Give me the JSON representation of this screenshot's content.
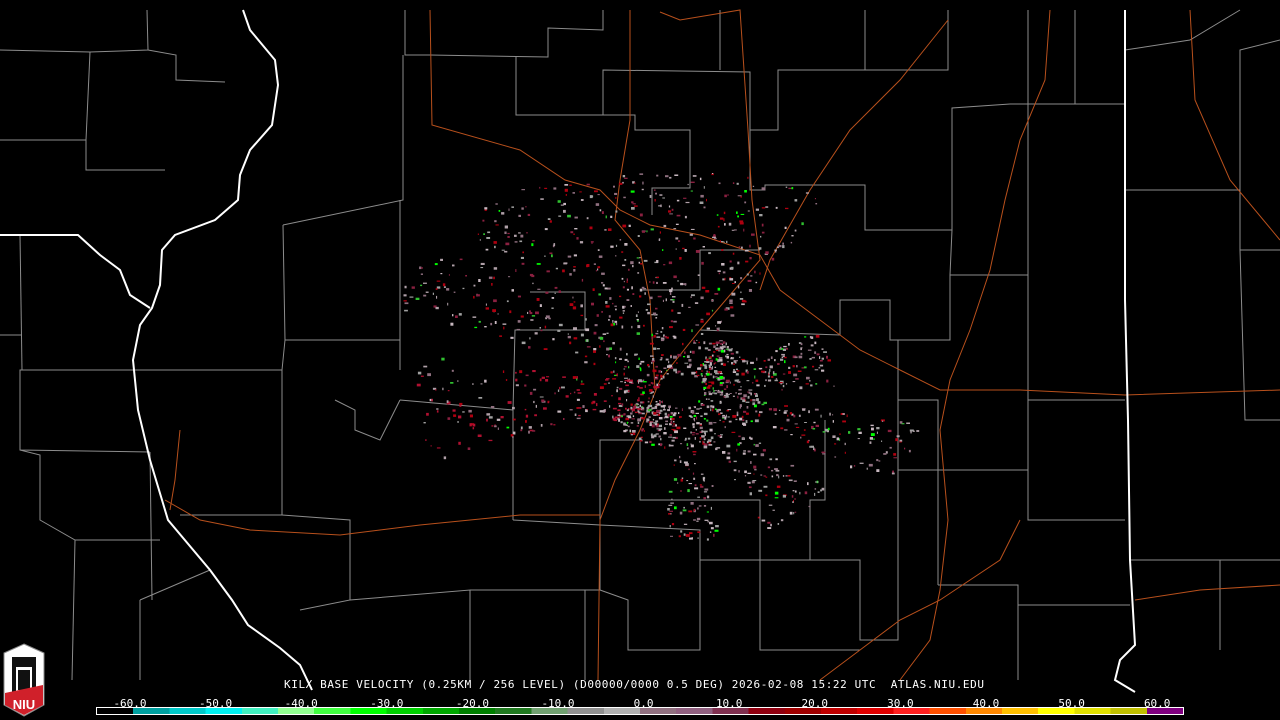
{
  "product": {
    "caption": "KILX BASE VELOCITY (0.25KM / 256 LEVEL) (D00000/0000 0.5 DEG) 2026-02-08 15:22 UTC  ATLAS.NIU.EDU",
    "radar_site": "KILX",
    "product_name": "BASE VELOCITY",
    "date": "2026-02-08",
    "time": "15:22 UTC",
    "elevation": "0.5 DEG",
    "source": "ATLAS.NIU.EDU"
  },
  "logo": {
    "text": "NIU",
    "accent": "#d0202a"
  },
  "colorbar": {
    "tick_labels": [
      "-60.0",
      "-50.0",
      "-40.0",
      "-30.0",
      "-20.0",
      "-10.0",
      "0.0",
      "10.0",
      "20.0",
      "30.0",
      "40.0",
      "50.0",
      "60.0"
    ],
    "range": [
      -64,
      64
    ],
    "colors": [
      "#000000",
      "#00a0a0",
      "#00c8c8",
      "#00f0f0",
      "#40f0c0",
      "#90ff90",
      "#40ff40",
      "#00ff00",
      "#00d000",
      "#00a800",
      "#008000",
      "#207a20",
      "#70a070",
      "#909090",
      "#b0b0b0",
      "#907080",
      "#906080",
      "#803050",
      "#900010",
      "#a00000",
      "#c00000",
      "#e00000",
      "#ff2020",
      "#ff5000",
      "#ff8800",
      "#ffc000",
      "#ffff00",
      "#e0e000",
      "#c0c000",
      "#800080"
    ]
  },
  "map_colors": {
    "state_border": "#ffffff",
    "county_border": "#8c8c8c",
    "highway": "#b8501c"
  }
}
